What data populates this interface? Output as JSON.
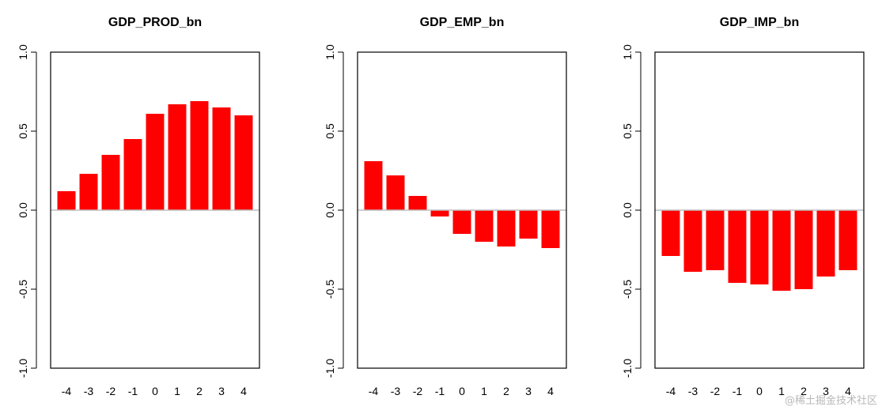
{
  "chart_data": [
    {
      "type": "bar",
      "title": "GDP_PROD_bn",
      "categories": [
        "-4",
        "-3",
        "-2",
        "-1",
        "0",
        "1",
        "2",
        "3",
        "4"
      ],
      "values": [
        0.12,
        0.23,
        0.35,
        0.45,
        0.61,
        0.67,
        0.69,
        0.65,
        0.6
      ],
      "ylim": [
        -1.0,
        1.0
      ],
      "yticks": [
        "-1.0",
        "-0.5",
        "0.0",
        "0.5",
        "1.0"
      ],
      "xlabel": "",
      "ylabel": "",
      "bar_color": "#ff0000",
      "zero_line_color": "#bebebe",
      "grid": false
    },
    {
      "type": "bar",
      "title": "GDP_EMP_bn",
      "categories": [
        "-4",
        "-3",
        "-2",
        "-1",
        "0",
        "1",
        "2",
        "3",
        "4"
      ],
      "values": [
        0.31,
        0.22,
        0.09,
        -0.04,
        -0.15,
        -0.2,
        -0.23,
        -0.18,
        -0.24
      ],
      "ylim": [
        -1.0,
        1.0
      ],
      "yticks": [
        "-1.0",
        "-0.5",
        "0.0",
        "0.5",
        "1.0"
      ],
      "xlabel": "",
      "ylabel": "",
      "bar_color": "#ff0000",
      "zero_line_color": "#bebebe",
      "grid": false
    },
    {
      "type": "bar",
      "title": "GDP_IMP_bn",
      "categories": [
        "-4",
        "-3",
        "-2",
        "-1",
        "0",
        "1",
        "2",
        "3",
        "4"
      ],
      "values": [
        -0.29,
        -0.39,
        -0.38,
        -0.46,
        -0.47,
        -0.51,
        -0.5,
        -0.42,
        -0.38
      ],
      "ylim": [
        -1.0,
        1.0
      ],
      "yticks": [
        "-1.0",
        "-0.5",
        "0.0",
        "0.5",
        "1.0"
      ],
      "xlabel": "",
      "ylabel": "",
      "bar_color": "#ff0000",
      "zero_line_color": "#bebebe",
      "grid": false
    }
  ],
  "watermark": "@稀土掘金技术社区"
}
